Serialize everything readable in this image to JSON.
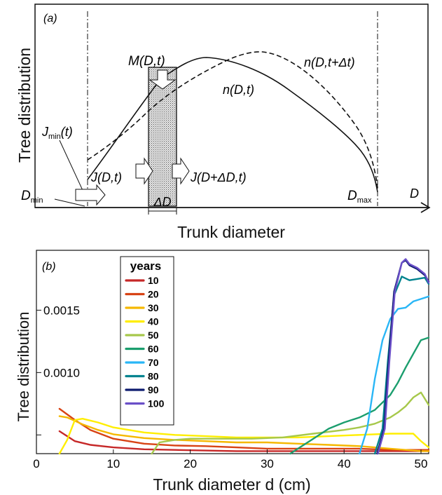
{
  "chart_data": [
    {
      "panel_label": "(a)",
      "type": "diagram",
      "ylabel": "Tree distribution",
      "xlabel": "Trunk diameter",
      "x_axis_symbol": "D",
      "annotations": {
        "m": "M(D,t)",
        "n_shift": "n(D,t+Δt)",
        "n": "n(D,t)",
        "jmin_main": "J",
        "jmin_sub": "min",
        "jmin_tail": "(t)",
        "j_in": "J(D,t)",
        "j_out": "J(D+ΔD,t)",
        "dmin_main": "D",
        "dmin_sub": "min",
        "dmax_main": "D",
        "dmax_sub": "max",
        "delta_d": "ΔD"
      }
    },
    {
      "panel_label": "(b)",
      "type": "line",
      "ylabel": "Tree distribution",
      "xlabel": "Trunk diameter d  (cm)",
      "xlim": [
        0,
        51
      ],
      "ylim": [
        0.00035,
        0.00198
      ],
      "xticks": [
        0,
        10,
        20,
        30,
        40,
        50
      ],
      "yticks": [
        0.001,
        0.0015
      ],
      "ytick_labels": [
        "0.0010",
        "0.0015"
      ],
      "ytick_minor": [
        0.0005
      ],
      "legend": {
        "title": "years",
        "placement": "upper-left"
      },
      "series": [
        {
          "name": "10",
          "color": "#c62828",
          "x": [
            3,
            5,
            7,
            10,
            14,
            18,
            22,
            26,
            30,
            34,
            38,
            42,
            46,
            50,
            51
          ],
          "y": [
            0.00053,
            0.00045,
            0.00042,
            0.0004,
            0.000385,
            0.00038,
            0.000375,
            0.00037,
            0.00037,
            0.00037,
            0.00037,
            0.00037,
            0.00037,
            0.00037,
            0.00037
          ]
        },
        {
          "name": "20",
          "color": "#d84315",
          "x": [
            3,
            5,
            7,
            10,
            14,
            18,
            22,
            26,
            30,
            34,
            38,
            42,
            46,
            50,
            51
          ],
          "y": [
            0.00071,
            0.00062,
            0.00054,
            0.00047,
            0.00043,
            0.000415,
            0.00041,
            0.0004,
            0.00039,
            0.00039,
            0.00039,
            0.00039,
            0.00038,
            0.00038,
            0.00038
          ]
        },
        {
          "name": "30",
          "color": "#f5b800",
          "x": [
            3,
            4,
            6,
            8,
            10,
            14,
            18,
            22,
            26,
            30,
            34,
            38,
            42,
            44,
            46,
            48,
            50,
            51
          ],
          "y": [
            0.00065,
            0.00064,
            0.000585,
            0.00054,
            0.000505,
            0.000475,
            0.00046,
            0.00045,
            0.00044,
            0.00044,
            0.00043,
            0.00042,
            0.00041,
            0.0004,
            0.00039,
            0.00038,
            0.00037,
            0.00037
          ]
        },
        {
          "name": "40",
          "color": "#ffee00",
          "x": [
            3,
            4,
            5,
            6,
            8,
            10,
            14,
            18,
            22,
            26,
            30,
            34,
            38,
            42,
            46,
            49,
            50,
            51
          ],
          "y": [
            0.00035,
            0.00046,
            0.00062,
            0.00063,
            0.0006,
            0.00056,
            0.00052,
            0.0005,
            0.00049,
            0.00048,
            0.00048,
            0.00048,
            0.00049,
            0.0005,
            0.00051,
            0.00051,
            0.00045,
            0.0004
          ]
        },
        {
          "name": "50",
          "color": "#a6c84a",
          "x": [
            15,
            16,
            18,
            20,
            24,
            28,
            32,
            36,
            40,
            42,
            44,
            46,
            47,
            48,
            49,
            50,
            51
          ],
          "y": [
            0.00035,
            0.00044,
            0.00046,
            0.00047,
            0.00047,
            0.00047,
            0.00048,
            0.00051,
            0.00054,
            0.00056,
            0.00059,
            0.00064,
            0.00068,
            0.00073,
            0.0008,
            0.00084,
            0.00074
          ]
        },
        {
          "name": "60",
          "color": "#1b9e6e",
          "x": [
            33,
            34,
            36,
            38,
            40,
            42,
            44,
            46,
            47,
            48,
            49,
            50,
            51
          ],
          "y": [
            0.00035,
            0.00039,
            0.00047,
            0.00055,
            0.0006,
            0.00064,
            0.0007,
            0.00082,
            0.00092,
            0.00104,
            0.00115,
            0.00126,
            0.00128
          ]
        },
        {
          "name": "70",
          "color": "#29b6f6",
          "x": [
            42,
            43,
            44,
            45,
            46,
            47,
            48,
            49,
            50,
            51
          ],
          "y": [
            0.00035,
            0.00055,
            0.00095,
            0.00126,
            0.00143,
            0.00151,
            0.00152,
            0.00157,
            0.00159,
            0.00161
          ]
        },
        {
          "name": "80",
          "color": "#00838f",
          "x": [
            44,
            45,
            45.7,
            46.5,
            47.5,
            48.5,
            49.5,
            50.5,
            51
          ],
          "y": [
            0.00035,
            0.00055,
            0.0011,
            0.00162,
            0.00177,
            0.00174,
            0.00175,
            0.00176,
            0.00171
          ]
        },
        {
          "name": "90",
          "color": "#0d1b6e",
          "x": [
            44.3,
            45.2,
            45.8,
            46.5,
            47.5,
            48,
            48.5,
            49.5,
            50.5,
            51
          ],
          "y": [
            0.00035,
            0.00055,
            0.0011,
            0.00165,
            0.00188,
            0.0019,
            0.00186,
            0.00183,
            0.00178,
            0.00173
          ]
        },
        {
          "name": "100",
          "color": "#6a4fc8",
          "x": [
            44.4,
            45.3,
            45.9,
            46.6,
            47.5,
            48,
            48.5,
            49.5,
            50.5,
            51
          ],
          "y": [
            0.00035,
            0.00055,
            0.0011,
            0.00165,
            0.00188,
            0.00191,
            0.00187,
            0.00184,
            0.00179,
            0.00172
          ]
        }
      ]
    }
  ]
}
